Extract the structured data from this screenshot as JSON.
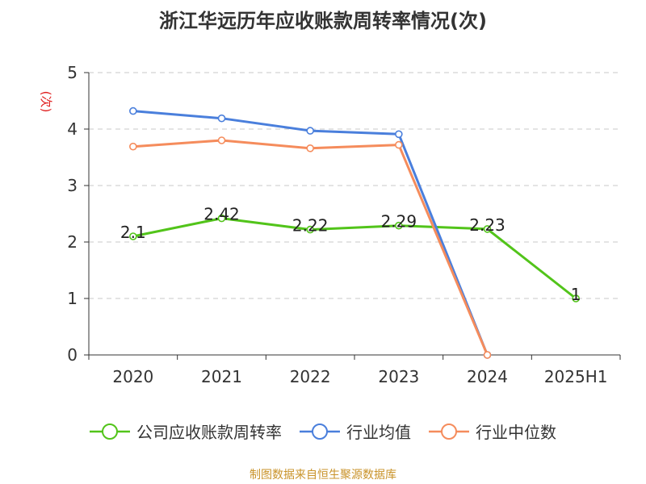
{
  "chart_data": {
    "type": "line",
    "title": "浙江华远历年应收账款周转率情况(次)",
    "ylabel": "(次)",
    "categories": [
      "2020",
      "2021",
      "2022",
      "2023",
      "2024",
      "2025H1"
    ],
    "ylim": [
      0,
      5
    ],
    "yticks": [
      "0",
      "1",
      "2",
      "3",
      "4",
      "5"
    ],
    "grid": true,
    "legend_position": "bottom",
    "series": [
      {
        "name": "公司应收账款周转率",
        "color": "#52c41a",
        "values": [
          2.1,
          2.42,
          2.22,
          2.29,
          2.23,
          1
        ],
        "labels": [
          "2.1",
          "2.42",
          "2.22",
          "2.29",
          "2.23",
          "1"
        ]
      },
      {
        "name": "行业均值",
        "color": "#4a7fdc",
        "values": [
          4.32,
          4.19,
          3.97,
          3.91,
          0,
          null
        ],
        "labels": []
      },
      {
        "name": "行业中位数",
        "color": "#f58c5c",
        "values": [
          3.69,
          3.8,
          3.66,
          3.72,
          0,
          null
        ],
        "labels": []
      }
    ]
  },
  "source_note": "制图数据来自恒生聚源数据库"
}
